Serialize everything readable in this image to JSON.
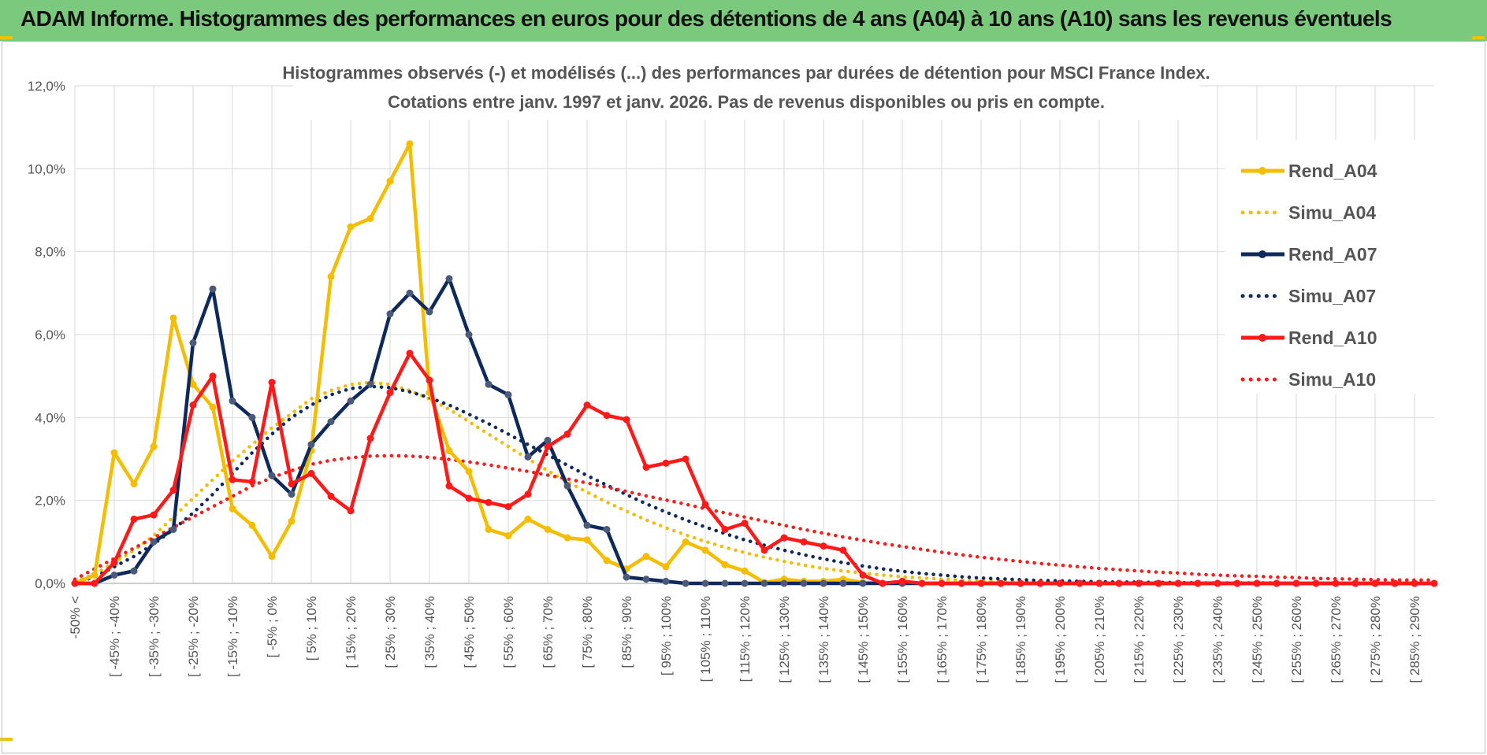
{
  "header": {
    "title": "ADAM Informe. Histogrammes des performances en euros pour des détentions de 4 ans (A04) à 10 ans (A10) sans les revenus éventuels"
  },
  "chart_data": {
    "type": "line",
    "title_line1": "Histogrammes observés (-) et modélisés (...) des performances par durées de détention pour MSCI France Index.",
    "title_line2": "Cotations entre janv. 1997 et janv. 2026. Pas de revenus disponibles ou pris en compte.",
    "ylim": [
      0,
      12
    ],
    "y_ticks": [
      "0,0%",
      "2,0%",
      "4,0%",
      "6,0%",
      "8,0%",
      "10,0%",
      "12,0%"
    ],
    "x_labels": [
      "-50% <",
      "[ -45% ; -40%",
      "[ -35% ; -30%",
      "[ -25% ; -20%",
      "[ -15% ; -10%",
      "[ -5% ; 0%",
      "[ 5% ; 10%",
      "[ 15% ; 20%",
      "[ 25% ; 30%",
      "[ 35% ; 40%",
      "[ 45% ; 50%",
      "[ 55% ; 60%",
      "[ 65% ; 70%",
      "[ 75% ; 80%",
      "[ 85% ; 90%",
      "[ 95% ; 100%",
      "[ 105% ; 110%",
      "[ 115% ; 120%",
      "[ 125% ; 130%",
      "[ 135% ; 140%",
      "[ 145% ; 150%",
      "[ 155% ; 160%",
      "[ 165% ; 170%",
      "[ 175% ; 180%",
      "[ 185% ; 190%",
      "[ 195% ; 200%",
      "[ 205% ; 210%",
      "[ 215% ; 220%",
      "[ 225% ; 230%",
      "[ 235% ; 240%",
      "[ 245% ; 250%",
      "[ 255% ; 260%",
      "[ 265% ; 270%",
      "[ 275% ; 280%",
      "[ 285% ; 290%"
    ],
    "n_points": 70,
    "series": [
      {
        "name": "Rend_A04",
        "color": "#f5bd00",
        "style": "solid",
        "values": [
          0,
          0.2,
          3.15,
          2.4,
          3.3,
          6.4,
          4.8,
          4.25,
          1.8,
          1.4,
          0.65,
          1.5,
          3.2,
          7.4,
          8.6,
          8.8,
          9.7,
          10.6,
          4.6,
          3.2,
          2.7,
          1.3,
          1.15,
          1.55,
          1.3,
          1.1,
          1.05,
          0.55,
          0.35,
          0.65,
          0.4,
          1.0,
          0.8,
          0.45,
          0.3,
          0.02,
          0.1,
          0.05,
          0.05,
          0.1,
          0.02,
          0,
          0,
          0,
          0,
          0,
          0,
          0,
          0,
          0,
          0,
          0,
          0,
          0,
          0,
          0,
          0,
          0,
          0,
          0,
          0,
          0,
          0,
          0,
          0,
          0,
          0,
          0,
          0,
          0
        ]
      },
      {
        "name": "Simu_A04",
        "color": "#f5bd00",
        "style": "dotted",
        "values": [
          0.05,
          0.22,
          0.5,
          0.8,
          1.15,
          1.6,
          2.05,
          2.5,
          2.95,
          3.35,
          3.75,
          4.1,
          4.45,
          4.65,
          4.8,
          4.85,
          4.8,
          4.65,
          4.45,
          4.2,
          3.9,
          3.6,
          3.3,
          3.0,
          2.72,
          2.45,
          2.2,
          1.96,
          1.74,
          1.53,
          1.34,
          1.17,
          1.01,
          0.87,
          0.74,
          0.63,
          0.53,
          0.44,
          0.36,
          0.3,
          0.25,
          0.2,
          0.16,
          0.13,
          0.1,
          0.08,
          0.06,
          0.05,
          0.04,
          0.03,
          0.02,
          0.02,
          0.01,
          0.01,
          0.01,
          0.01,
          0,
          0,
          0,
          0,
          0,
          0,
          0,
          0,
          0,
          0,
          0,
          0,
          0,
          0
        ]
      },
      {
        "name": "Rend_A07",
        "color": "#0e2a5c",
        "style": "solid",
        "values": [
          0,
          0,
          0.2,
          0.3,
          1.0,
          1.3,
          5.8,
          7.1,
          4.4,
          4.0,
          2.6,
          2.15,
          3.35,
          3.9,
          4.4,
          4.8,
          6.5,
          7.0,
          6.55,
          7.35,
          6.0,
          4.8,
          4.55,
          3.05,
          3.45,
          2.35,
          1.4,
          1.3,
          0.15,
          0.1,
          0.05,
          0,
          0,
          0,
          0,
          0,
          0,
          0,
          0,
          0,
          0,
          0,
          0,
          0,
          0,
          0,
          0,
          0,
          0,
          0,
          0,
          0,
          0,
          0,
          0,
          0,
          0,
          0,
          0,
          0,
          0,
          0,
          0,
          0,
          0,
          0,
          0,
          0,
          0,
          0
        ]
      },
      {
        "name": "Simu_A07",
        "color": "#0e2a5c",
        "style": "dotted",
        "values": [
          0.02,
          0.15,
          0.4,
          0.65,
          0.95,
          1.3,
          1.7,
          2.15,
          2.65,
          3.15,
          3.6,
          4.0,
          4.3,
          4.55,
          4.7,
          4.75,
          4.72,
          4.62,
          4.48,
          4.3,
          4.08,
          3.85,
          3.6,
          3.35,
          3.1,
          2.85,
          2.6,
          2.37,
          2.14,
          1.92,
          1.72,
          1.53,
          1.36,
          1.2,
          1.05,
          0.92,
          0.8,
          0.69,
          0.59,
          0.5,
          0.42,
          0.35,
          0.29,
          0.24,
          0.2,
          0.16,
          0.13,
          0.11,
          0.09,
          0.07,
          0.06,
          0.05,
          0.04,
          0.03,
          0.03,
          0.02,
          0.02,
          0.01,
          0.01,
          0.01,
          0.01,
          0.01,
          0,
          0,
          0,
          0,
          0,
          0,
          0,
          0
        ]
      },
      {
        "name": "Rend_A10",
        "color": "#ff1a1a",
        "style": "solid",
        "values": [
          0,
          0,
          0.5,
          1.55,
          1.65,
          2.25,
          4.3,
          5.0,
          2.5,
          2.45,
          4.85,
          2.4,
          2.65,
          2.1,
          1.75,
          3.5,
          4.6,
          5.55,
          4.9,
          2.35,
          2.05,
          1.95,
          1.85,
          2.15,
          3.3,
          3.6,
          4.3,
          4.05,
          3.95,
          2.8,
          2.9,
          3.0,
          1.9,
          1.3,
          1.45,
          0.8,
          1.1,
          1.0,
          0.9,
          0.8,
          0.2,
          0,
          0.05,
          0,
          0,
          0,
          0,
          0,
          0,
          0,
          0,
          0,
          0,
          0,
          0,
          0,
          0,
          0,
          0,
          0,
          0,
          0,
          0,
          0,
          0,
          0,
          0,
          0,
          0,
          0
        ]
      },
      {
        "name": "Simu_A10",
        "color": "#ff1a1a",
        "style": "dotted",
        "values": [
          0.1,
          0.35,
          0.6,
          0.85,
          1.1,
          1.35,
          1.6,
          1.85,
          2.1,
          2.35,
          2.55,
          2.72,
          2.87,
          2.97,
          3.03,
          3.07,
          3.08,
          3.07,
          3.04,
          2.99,
          2.93,
          2.86,
          2.78,
          2.7,
          2.61,
          2.52,
          2.42,
          2.32,
          2.22,
          2.11,
          2.01,
          1.91,
          1.8,
          1.7,
          1.6,
          1.5,
          1.4,
          1.3,
          1.21,
          1.12,
          1.04,
          0.96,
          0.89,
          0.82,
          0.75,
          0.69,
          0.63,
          0.58,
          0.53,
          0.48,
          0.44,
          0.4,
          0.36,
          0.33,
          0.3,
          0.27,
          0.25,
          0.22,
          0.2,
          0.18,
          0.17,
          0.15,
          0.14,
          0.12,
          0.11,
          0.1,
          0.09,
          0.08,
          0.08,
          0.08
        ]
      }
    ]
  }
}
